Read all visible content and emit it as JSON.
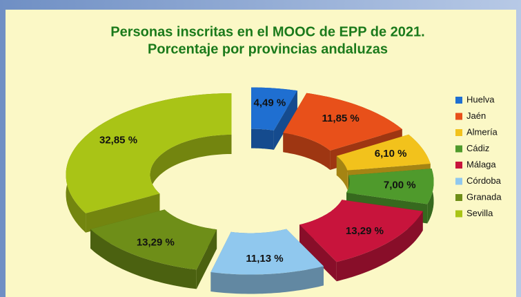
{
  "chart_data": {
    "type": "donut",
    "title": [
      "Personas inscritas en el MOOC de EPP de 2021.",
      "Porcentaje por provincias andaluzas"
    ],
    "categories": [
      "Huelva",
      "Jaén",
      "Almería",
      "Cádiz",
      "Málaga",
      "Córdoba",
      "Granada",
      "Sevilla"
    ],
    "values": [
      4.49,
      11.85,
      6.1,
      7.0,
      13.29,
      11.13,
      13.29,
      32.85
    ],
    "value_labels": [
      "4,49 %",
      "11,85 %",
      "6,10 %",
      "7,00 %",
      "13,29 %",
      "11,13 %",
      "13,29 %",
      "32,85 %"
    ],
    "colors": [
      "#1f6fd1",
      "#e8501a",
      "#f2c21c",
      "#4f9a2c",
      "#c8143c",
      "#90c8ee",
      "#6e8e18",
      "#a9c416"
    ],
    "legend": "right"
  }
}
